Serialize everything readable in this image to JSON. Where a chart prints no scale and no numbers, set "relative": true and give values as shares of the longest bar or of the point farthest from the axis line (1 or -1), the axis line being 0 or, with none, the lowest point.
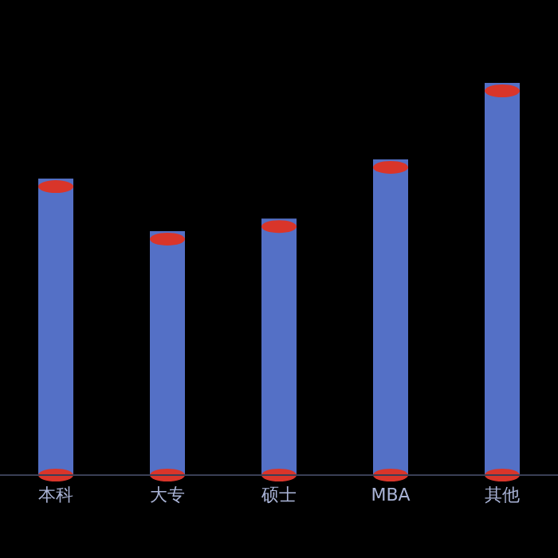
{
  "chart_data": {
    "type": "bar",
    "relative": true,
    "categories": [
      "本科",
      "大专",
      "硕士",
      "MBA",
      "其他"
    ],
    "values": [
      0.756,
      0.622,
      0.654,
      0.805,
      1
    ],
    "color": "#5470c6",
    "grid": false,
    "legend": false
  }
}
